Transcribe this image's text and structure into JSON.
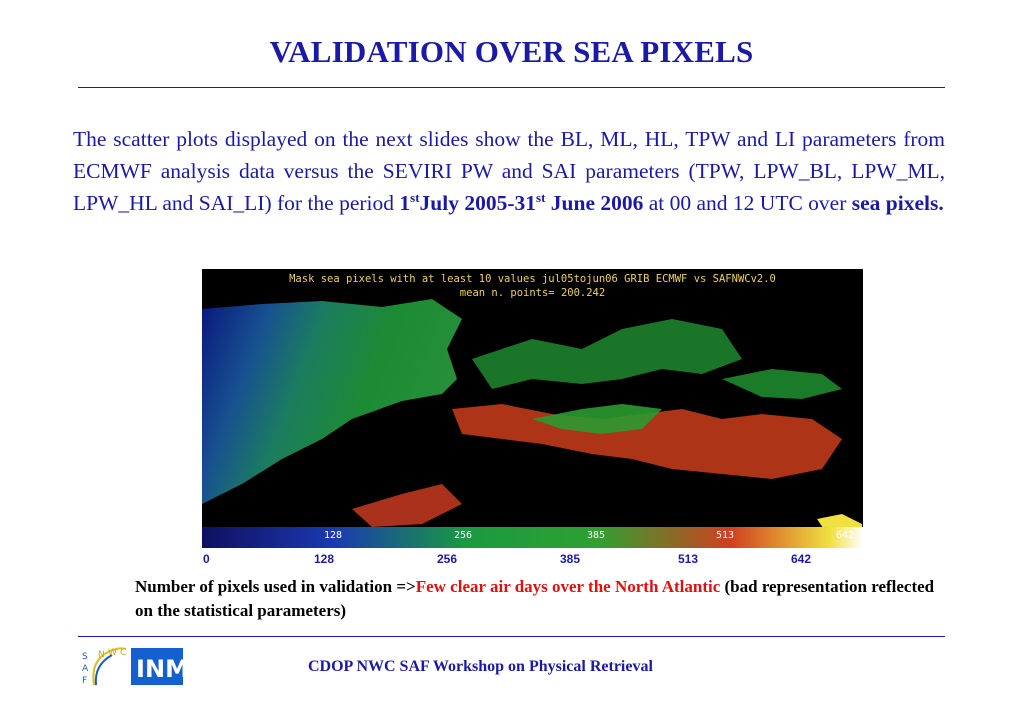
{
  "slide": {
    "title": "VALIDATION OVER SEA PIXELS",
    "body": {
      "intro": "The scatter plots displayed on the next slides show the BL, ML, HL, TPW and LI parameters from ECMWF analysis data versus the SEVIRI PW and SAI parameters (TPW, LPW_BL, LPW_ML, LPW_HL and SAI_LI) for the period ",
      "date_1_num": "1",
      "date_1_sup": "st",
      "date_1_rest": "July 2005-31",
      "date_2_sup": "st",
      "date_2_rest": " June 2006",
      "mid": " at 00 and 12 UTC over ",
      "end_bold": "sea pixels."
    },
    "map": {
      "header_line1": "Mask sea pixels with at least 10 values jul05tojun06 GRIB ECMWF vs SAFNWCv2.0",
      "header_line2": "mean n. points=       200.242",
      "inner_labels": [
        "128",
        "256",
        "385",
        "513",
        "642"
      ]
    },
    "scale_labels": [
      "0",
      "128",
      "256",
      "385",
      "513",
      "642"
    ],
    "caption": {
      "part1": "Number of pixels used in validation =>",
      "part2_red": "Few clear air days over the North Atlantic",
      "part3": " (bad representation reflected on the statistical parameters)"
    },
    "footer": {
      "text": "CDOP NWC SAF Workshop on Physical Retrieval",
      "logo_saf_letters": "SAF NWC",
      "logo_inm_letters": "INM"
    },
    "colors": {
      "title_blue": "#1a1aa6",
      "caption_red": "#e01010"
    }
  }
}
